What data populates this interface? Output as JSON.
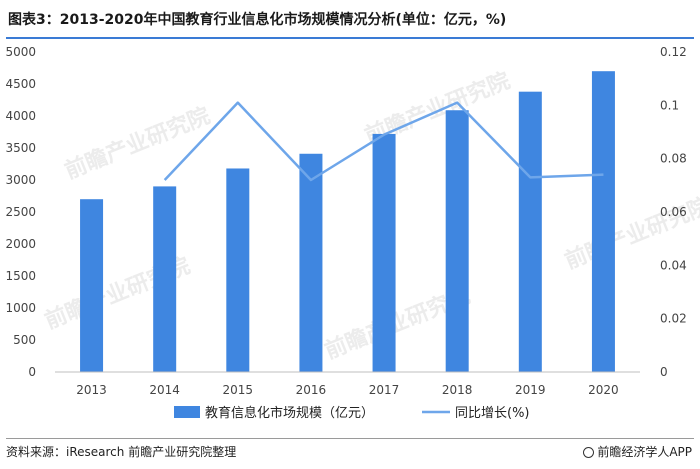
{
  "title": "图表3：2013-2020年中国教育行业信息化市场规模情况分析(单位：亿元，%)",
  "watermark": "前瞻产业研究院",
  "footer": {
    "source": "资料来源：iResearch 前瞻产业研究院整理",
    "brand": "前瞻经济学人APP",
    "brand_icon": "qianzhan-logo-icon"
  },
  "colors": {
    "bar": "#3f86e0",
    "line": "#6ea6ea",
    "title_rule": "#3a7bd5"
  },
  "chart_data": {
    "type": "bar",
    "categories": [
      "2013",
      "2014",
      "2015",
      "2016",
      "2017",
      "2018",
      "2019",
      "2020"
    ],
    "series": [
      {
        "name": "教育信息化市场规模（亿元）",
        "type": "bar",
        "axis": "left",
        "values": [
          2700,
          2900,
          3180,
          3410,
          3720,
          4090,
          4380,
          4700
        ]
      },
      {
        "name": "同比增长(%)",
        "type": "line",
        "axis": "right",
        "values": [
          null,
          0.072,
          0.101,
          0.072,
          0.089,
          0.101,
          0.073,
          0.074
        ]
      }
    ],
    "y_left": {
      "lim": [
        0,
        5000
      ],
      "ticks": [
        "0",
        "500",
        "1000",
        "1500",
        "2000",
        "2500",
        "3000",
        "3500",
        "4000",
        "4500",
        "5000"
      ]
    },
    "y_right": {
      "lim": [
        0,
        0.12
      ],
      "ticks": [
        "0",
        "0.02",
        "0.04",
        "0.06",
        "0.08",
        "0.1",
        "0.12"
      ]
    },
    "grid": false,
    "legend": "bottom-center"
  }
}
